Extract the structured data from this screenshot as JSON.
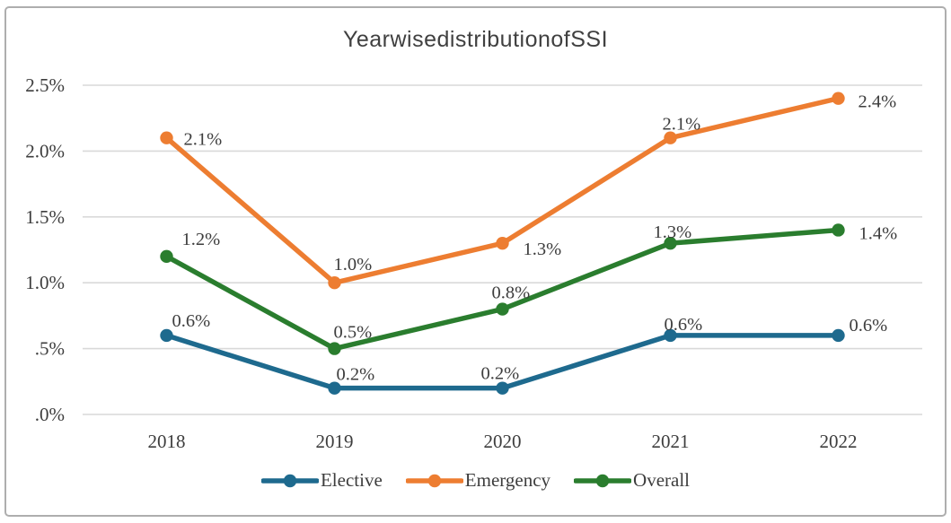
{
  "figure": {
    "title": "YearwisedistributionofSSI",
    "background": "#ffffff",
    "border_color": "#aeaeae",
    "text_color": "#3d3d3d",
    "gridline_color": "#d9d9d9"
  },
  "chart_data": {
    "type": "line",
    "title": "YearwisedistributionofSSI",
    "categories": [
      "2018",
      "2019",
      "2020",
      "2021",
      "2022"
    ],
    "xlabel": "",
    "ylabel": "",
    "ylim": [
      0,
      2.5
    ],
    "y_ticks": {
      "values": [
        0,
        0.5,
        1,
        1.5,
        2,
        2.5
      ],
      "labels": [
        ".0%",
        ".5%",
        "1.0%",
        "1.5%",
        "2.0%",
        "2.5%"
      ]
    },
    "grid": "horizontal",
    "legend_position": "bottom",
    "legend": [
      "Elective",
      "Emergency",
      "Overall"
    ],
    "series": [
      {
        "name": "Elective",
        "color": "#1e6a8e",
        "values": [
          0.6,
          0.2,
          0.2,
          0.6,
          0.6
        ],
        "point_labels": [
          "0.6%",
          "0.2%",
          "0.2%",
          "0.6%",
          "0.6%"
        ],
        "label_offsets": [
          [
            6,
            -10
          ],
          [
            2,
            -9
          ],
          [
            -24,
            -10
          ],
          [
            -7,
            -6
          ],
          [
            12,
            -5
          ]
        ]
      },
      {
        "name": "Emergency",
        "color": "#ed7d31",
        "values": [
          2.1,
          1.0,
          1.3,
          2.1,
          2.4
        ],
        "point_labels": [
          "2.1%",
          "1.0%",
          "1.3%",
          "2.1%",
          "2.4%"
        ],
        "label_offsets": [
          [
            19,
            8
          ],
          [
            -1,
            -14
          ],
          [
            23,
            13
          ],
          [
            -9,
            -9
          ],
          [
            22,
            10
          ]
        ]
      },
      {
        "name": "Overall",
        "color": "#2a7d2e",
        "values": [
          1.2,
          0.5,
          0.8,
          1.3,
          1.4
        ],
        "point_labels": [
          "1.2%",
          "0.5%",
          "0.8%",
          "1.3%",
          "1.4%"
        ],
        "label_offsets": [
          [
            17,
            -13
          ],
          [
            -1,
            -12
          ],
          [
            -12,
            -12
          ],
          [
            -19,
            -6
          ],
          [
            23,
            10
          ]
        ]
      }
    ]
  }
}
